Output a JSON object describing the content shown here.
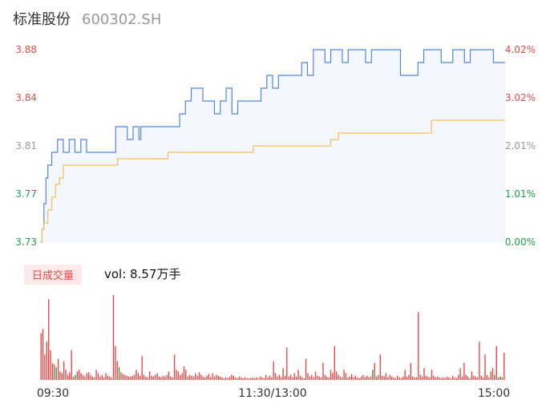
{
  "header": {
    "stock_name": "标准股份",
    "stock_code": "600302.SH"
  },
  "volume_panel": {
    "tag_label": "日成交量",
    "summary": "vol: 8.57万手"
  },
  "colors": {
    "price_line": "#4f86e3",
    "avg_line": "#f3c161",
    "area_fill": "#f4f7fd",
    "up": "#e84a4a",
    "down": "#1aa34a",
    "neutral": "#9a9a9a"
  },
  "chart_data": [
    {
      "type": "line",
      "title": "",
      "x_ticks": [
        "09:30",
        "11:30/13:00",
        "15:00"
      ],
      "y_ticks_left": [
        "3.88",
        "3.84",
        "3.81",
        "3.77",
        "3.73"
      ],
      "y_ticks_right": [
        "4.02%",
        "3.02%",
        "2.01%",
        "1.01%",
        "0.00%"
      ],
      "ylim": [
        3.73,
        3.88
      ],
      "series": [
        {
          "role": "price",
          "x": [
            0,
            1,
            2,
            3,
            4,
            6,
            9,
            12,
            15,
            18,
            21,
            24,
            27,
            30,
            33,
            36,
            39,
            42,
            45,
            48,
            51,
            52,
            60,
            72,
            75,
            78,
            81,
            84,
            87,
            90,
            93,
            96,
            99,
            102,
            105,
            108,
            111,
            114,
            117,
            120,
            123,
            126,
            129,
            132,
            135,
            138,
            141,
            144,
            147,
            150,
            153,
            156,
            159,
            162,
            165,
            168,
            171,
            174,
            177,
            180,
            183,
            186,
            189,
            192,
            195,
            198,
            201,
            204,
            207,
            210,
            213,
            216,
            219,
            222,
            225,
            228,
            231,
            234,
            237,
            240
          ],
          "values": [
            3.73,
            3.74,
            3.76,
            3.78,
            3.79,
            3.8,
            3.81,
            3.8,
            3.81,
            3.8,
            3.81,
            3.8,
            3.8,
            3.8,
            3.8,
            3.8,
            3.82,
            3.82,
            3.81,
            3.82,
            3.81,
            3.82,
            3.82,
            3.83,
            3.84,
            3.85,
            3.85,
            3.84,
            3.84,
            3.83,
            3.84,
            3.85,
            3.83,
            3.84,
            3.84,
            3.84,
            3.84,
            3.85,
            3.86,
            3.85,
            3.86,
            3.86,
            3.86,
            3.86,
            3.87,
            3.86,
            3.88,
            3.88,
            3.87,
            3.88,
            3.88,
            3.87,
            3.88,
            3.88,
            3.88,
            3.87,
            3.88,
            3.88,
            3.88,
            3.88,
            3.88,
            3.86,
            3.86,
            3.86,
            3.87,
            3.88,
            3.88,
            3.88,
            3.87,
            3.87,
            3.88,
            3.88,
            3.87,
            3.88,
            3.88,
            3.88,
            3.88,
            3.87,
            3.87,
            3.87
          ]
        },
        {
          "role": "average",
          "x": [
            0,
            1,
            2,
            4,
            6,
            8,
            10,
            12,
            16,
            20,
            24,
            28,
            32,
            36,
            40,
            48,
            56,
            64,
            66,
            80,
            100,
            106,
            110,
            130,
            150,
            154,
            160,
            200,
            202,
            210,
            220,
            235,
            240
          ],
          "values": [
            3.73,
            3.74,
            3.745,
            3.755,
            3.765,
            3.775,
            3.78,
            3.79,
            3.79,
            3.79,
            3.79,
            3.79,
            3.79,
            3.79,
            3.795,
            3.795,
            3.795,
            3.795,
            3.8,
            3.8,
            3.8,
            3.8,
            3.805,
            3.805,
            3.81,
            3.815,
            3.815,
            3.815,
            3.825,
            3.825,
            3.825,
            3.825,
            3.825
          ]
        }
      ]
    },
    {
      "type": "bar",
      "title": "",
      "x_range": [
        0,
        240
      ],
      "x_ticks": [
        "09:30",
        "11:30/13:00",
        "15:00"
      ],
      "bar_values": [
        55,
        60,
        30,
        45,
        95,
        35,
        20,
        18,
        15,
        25,
        10,
        8,
        22,
        12,
        6,
        9,
        35,
        4,
        6,
        10,
        12,
        8,
        6,
        4,
        8,
        9,
        6,
        4,
        3,
        12,
        8,
        4,
        6,
        3,
        8,
        5,
        4,
        3,
        100,
        40,
        22,
        15,
        9,
        7,
        6,
        5,
        4,
        4,
        5,
        6,
        12,
        8,
        5,
        28,
        6,
        4,
        3,
        10,
        5,
        4,
        6,
        8,
        4,
        3,
        5,
        4,
        6,
        10,
        4,
        3,
        30,
        12,
        10,
        6,
        8,
        16,
        12,
        4,
        6,
        5,
        4,
        8,
        5,
        9,
        6,
        4,
        3,
        5,
        7,
        3,
        8,
        4,
        6,
        5,
        4,
        3,
        2,
        3,
        2,
        4,
        6,
        5,
        3,
        2,
        4,
        3,
        2,
        3,
        2,
        2,
        2,
        3,
        2,
        3,
        2,
        4,
        3,
        2,
        6,
        3,
        5,
        3,
        22,
        8,
        4,
        6,
        3,
        14,
        5,
        38,
        4,
        6,
        3,
        8,
        4,
        12,
        5,
        3,
        2,
        25,
        8,
        4,
        6,
        3,
        10,
        5,
        4,
        3,
        20,
        6,
        4,
        3,
        12,
        8,
        40,
        10,
        6,
        4,
        3,
        12,
        8,
        3,
        4,
        7,
        3,
        5,
        3,
        2,
        4,
        6,
        3,
        5,
        3,
        4,
        12,
        20,
        4,
        6,
        30,
        5,
        4,
        8,
        3,
        6,
        4,
        3,
        2,
        5,
        3,
        2,
        4,
        12,
        4,
        6,
        20,
        4,
        3,
        3,
        80,
        6,
        4,
        14,
        5,
        4,
        3,
        12,
        5,
        3,
        4,
        3,
        2,
        3,
        2,
        4,
        3,
        2,
        5,
        3,
        2,
        6,
        14,
        4,
        20,
        6,
        4,
        2,
        10,
        5,
        4,
        3,
        45,
        5,
        3,
        30,
        6,
        3,
        10,
        14,
        6,
        40,
        3,
        4,
        3,
        32
      ],
      "bar_colors": [
        "up",
        "up",
        "up",
        "up",
        "up",
        "up",
        "up",
        "up",
        "down",
        "up",
        "up",
        "up",
        "up",
        "up",
        "up",
        "up",
        "up",
        "up",
        "down",
        "up",
        "up",
        "up",
        "up",
        "up",
        "up",
        "up",
        "up",
        "up",
        "up",
        "up",
        "up",
        "up",
        "up",
        "up",
        "up",
        "up",
        "up",
        "up",
        "up",
        "up",
        "up",
        "down",
        "up",
        "up",
        "up",
        "up",
        "up",
        "up",
        "up",
        "up",
        "up",
        "up",
        "up",
        "up",
        "up",
        "up",
        "up",
        "up",
        "up",
        "up",
        "up",
        "up",
        "up",
        "up",
        "up",
        "up",
        "up",
        "up",
        "up",
        "up",
        "up",
        "up",
        "up",
        "up",
        "up",
        "up",
        "up",
        "up",
        "up",
        "up",
        "up",
        "up",
        "up",
        "up",
        "up",
        "up",
        "up",
        "up",
        "up",
        "up",
        "up",
        "up",
        "up",
        "up",
        "up",
        "up",
        "up",
        "up",
        "up",
        "up",
        "up",
        "up",
        "up",
        "up",
        "up",
        "up",
        "up",
        "up",
        "up",
        "up",
        "up",
        "up",
        "up",
        "up",
        "up",
        "up",
        "up",
        "up",
        "up",
        "up",
        "up",
        "up",
        "up",
        "up",
        "up",
        "up",
        "up",
        "up",
        "up",
        "up",
        "up",
        "up",
        "up",
        "up",
        "up",
        "up",
        "up",
        "up",
        "up",
        "up",
        "up",
        "up",
        "up",
        "up",
        "up",
        "up",
        "up",
        "up",
        "up",
        "up",
        "up",
        "up",
        "up",
        "up",
        "up",
        "up",
        "up",
        "up",
        "down",
        "up",
        "up",
        "up",
        "up",
        "up",
        "up",
        "up",
        "up",
        "up",
        "up",
        "up",
        "up",
        "up",
        "up",
        "up",
        "down",
        "up",
        "up",
        "up",
        "up",
        "up",
        "up",
        "up",
        "up",
        "up",
        "up",
        "up",
        "up",
        "up",
        "up",
        "up",
        "up",
        "up",
        "up",
        "up",
        "up",
        "up",
        "up",
        "up",
        "up",
        "up",
        "up",
        "up",
        "up",
        "up",
        "up",
        "up",
        "up",
        "up",
        "up",
        "up",
        "up",
        "up",
        "up",
        "up",
        "up",
        "up",
        "up",
        "up",
        "up",
        "up",
        "up",
        "up",
        "up",
        "up",
        "up",
        "up",
        "up",
        "up",
        "up",
        "up",
        "up",
        "up",
        "up",
        "up",
        "up",
        "up",
        "up",
        "up",
        "down",
        "up",
        "up",
        "down",
        "up",
        "up",
        "up",
        "up",
        "down",
        "neutral"
      ]
    }
  ]
}
